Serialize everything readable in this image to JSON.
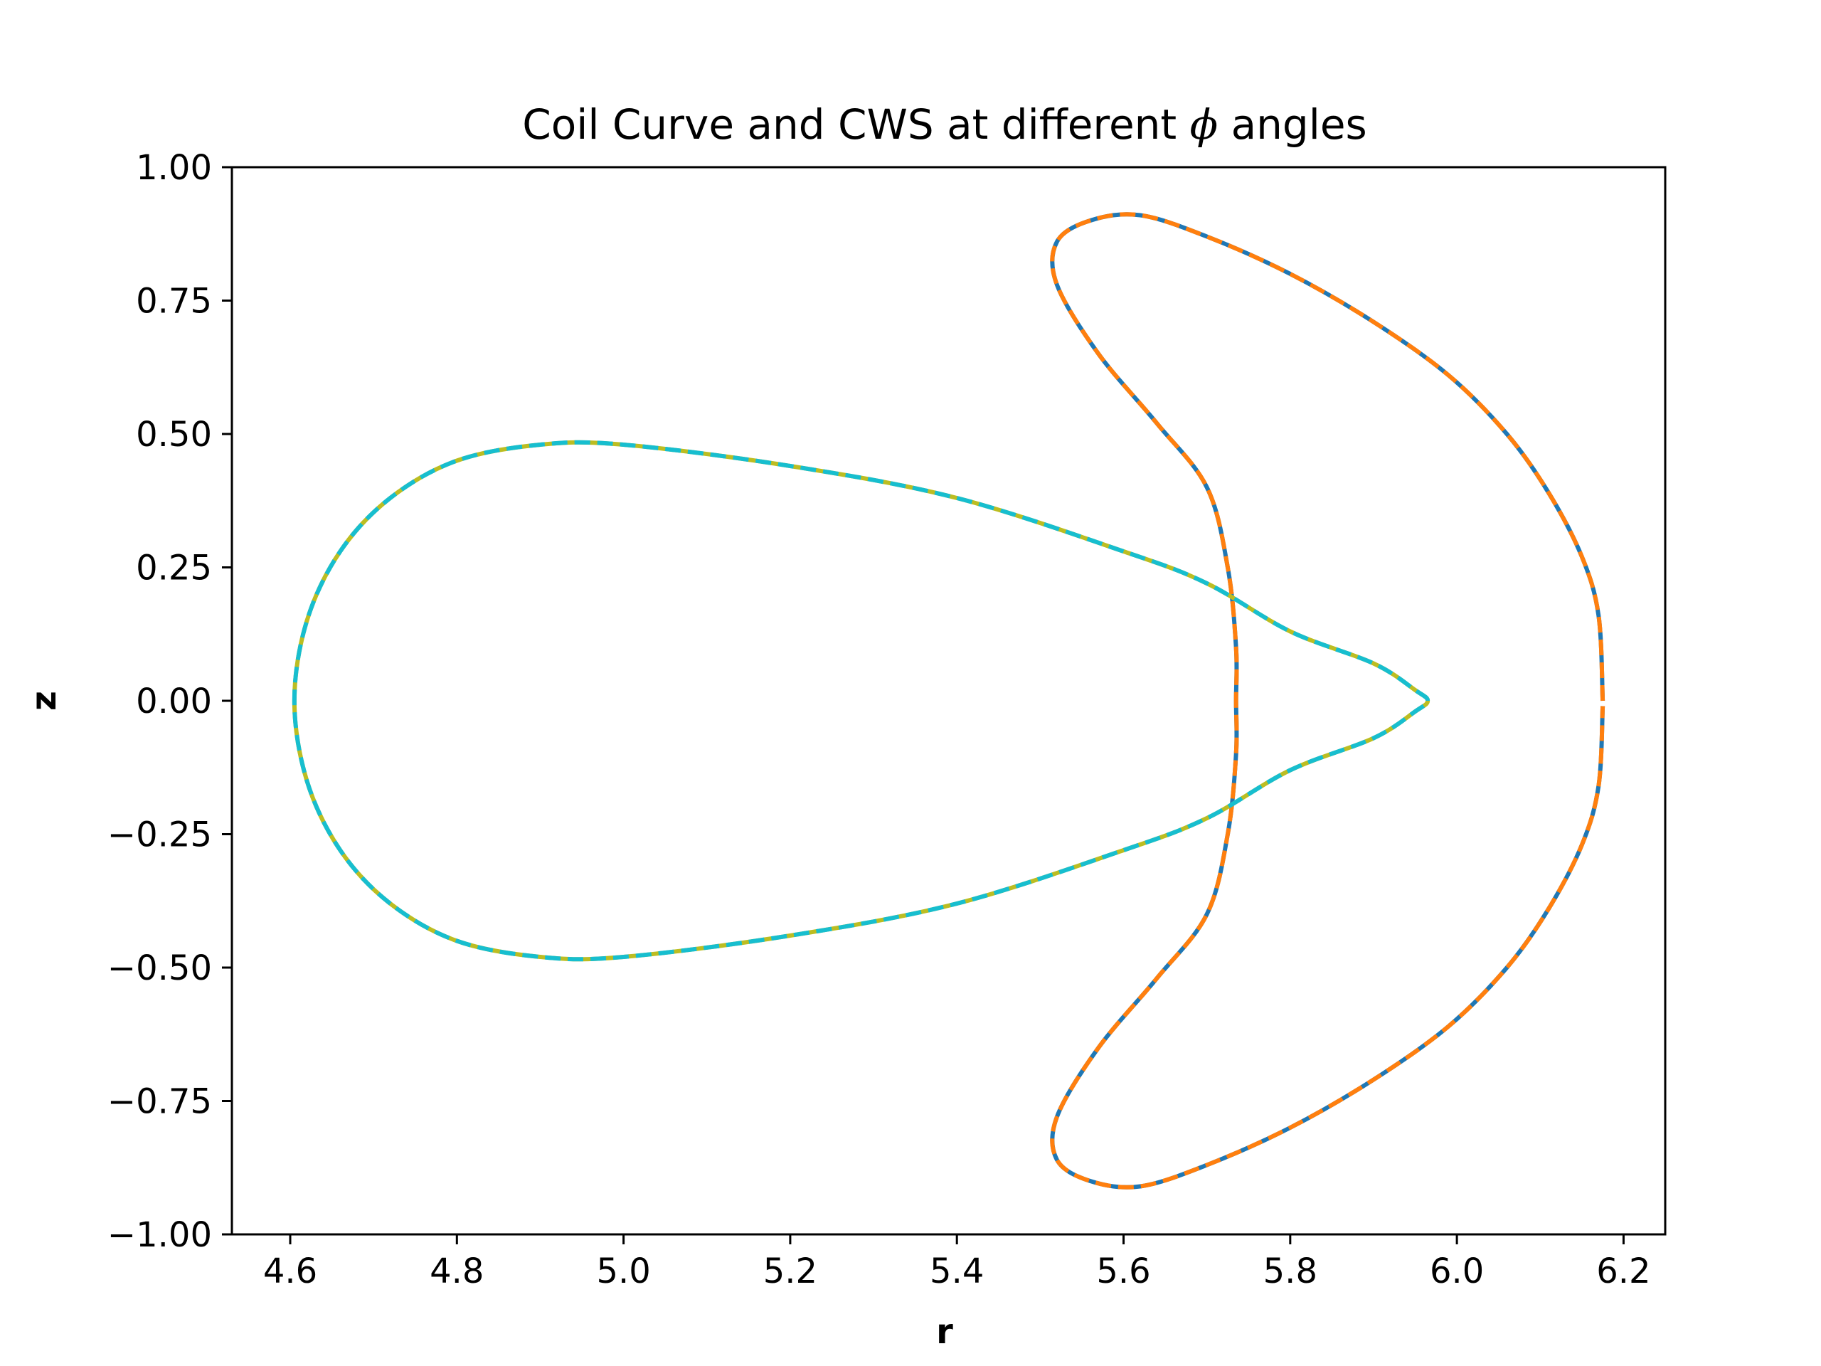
{
  "chart_data": {
    "type": "line",
    "title_before": "Coil Curve and CWS at different ",
    "title_symbol": "ϕ",
    "title_after": " angles",
    "xlabel": "r",
    "ylabel": "z",
    "xlim": [
      4.53,
      6.25
    ],
    "ylim": [
      -1.0,
      1.0
    ],
    "x_ticks": [
      4.6,
      4.8,
      5.0,
      5.2,
      5.4,
      5.6,
      5.8,
      6.0,
      6.2
    ],
    "x_tick_labels": [
      "4.6",
      "4.8",
      "5.0",
      "5.2",
      "5.4",
      "5.6",
      "5.8",
      "6.0",
      "6.2"
    ],
    "y_ticks": [
      1.0,
      0.75,
      0.5,
      0.25,
      0.0,
      -0.25,
      -0.5,
      -0.75,
      -1.0
    ],
    "y_tick_labels": [
      "1.00",
      "0.75",
      "0.50",
      "0.25",
      "0.00",
      "−0.25",
      "−0.50",
      "−0.75",
      "−1.00"
    ],
    "grid": false,
    "legend": "none",
    "series": [
      {
        "color": "#1f77b4",
        "style": "solid",
        "closed": false,
        "points": [
          [
            6.175,
            0.0
          ],
          [
            6.17,
            0.16
          ],
          [
            6.15,
            0.27
          ],
          [
            6.11,
            0.39
          ],
          [
            6.06,
            0.5
          ],
          [
            5.99,
            0.61
          ],
          [
            5.9,
            0.71
          ],
          [
            5.8,
            0.8
          ],
          [
            5.7,
            0.87
          ],
          [
            5.62,
            0.91
          ],
          [
            5.56,
            0.9
          ],
          [
            5.52,
            0.86
          ],
          [
            5.52,
            0.78
          ],
          [
            5.57,
            0.65
          ],
          [
            5.64,
            0.52
          ],
          [
            5.7,
            0.4
          ],
          [
            5.725,
            0.25
          ],
          [
            5.735,
            0.1
          ],
          [
            5.735,
            0.0
          ],
          [
            5.735,
            -0.1
          ],
          [
            5.725,
            -0.25
          ],
          [
            5.7,
            -0.4
          ],
          [
            5.64,
            -0.52
          ],
          [
            5.57,
            -0.65
          ],
          [
            5.52,
            -0.78
          ],
          [
            5.52,
            -0.86
          ],
          [
            5.56,
            -0.9
          ],
          [
            5.62,
            -0.91
          ],
          [
            5.7,
            -0.87
          ],
          [
            5.8,
            -0.8
          ],
          [
            5.9,
            -0.71
          ],
          [
            5.99,
            -0.61
          ],
          [
            6.06,
            -0.5
          ],
          [
            6.11,
            -0.39
          ],
          [
            6.15,
            -0.27
          ],
          [
            6.17,
            -0.16
          ],
          [
            6.175,
            -0.01
          ]
        ]
      },
      {
        "color": "#ff7f0e",
        "style": "dashed",
        "closed": false,
        "points": [
          [
            6.175,
            0.0
          ],
          [
            6.17,
            0.16
          ],
          [
            6.15,
            0.27
          ],
          [
            6.11,
            0.39
          ],
          [
            6.06,
            0.5
          ],
          [
            5.99,
            0.61
          ],
          [
            5.9,
            0.71
          ],
          [
            5.8,
            0.8
          ],
          [
            5.7,
            0.87
          ],
          [
            5.62,
            0.91
          ],
          [
            5.56,
            0.9
          ],
          [
            5.52,
            0.86
          ],
          [
            5.52,
            0.78
          ],
          [
            5.57,
            0.65
          ],
          [
            5.64,
            0.52
          ],
          [
            5.7,
            0.4
          ],
          [
            5.725,
            0.25
          ],
          [
            5.735,
            0.1
          ],
          [
            5.735,
            0.0
          ],
          [
            5.735,
            -0.1
          ],
          [
            5.725,
            -0.25
          ],
          [
            5.7,
            -0.4
          ],
          [
            5.64,
            -0.52
          ],
          [
            5.57,
            -0.65
          ],
          [
            5.52,
            -0.78
          ],
          [
            5.52,
            -0.86
          ],
          [
            5.56,
            -0.9
          ],
          [
            5.62,
            -0.91
          ],
          [
            5.7,
            -0.87
          ],
          [
            5.8,
            -0.8
          ],
          [
            5.9,
            -0.71
          ],
          [
            5.99,
            -0.61
          ],
          [
            6.06,
            -0.5
          ],
          [
            6.11,
            -0.39
          ],
          [
            6.15,
            -0.27
          ],
          [
            6.17,
            -0.16
          ],
          [
            6.175,
            -0.01
          ]
        ]
      },
      {
        "color": "#bcbd22",
        "style": "solid",
        "closed": true,
        "points": [
          [
            5.965,
            0.0
          ],
          [
            5.95,
            0.02
          ],
          [
            5.9,
            0.07
          ],
          [
            5.8,
            0.13
          ],
          [
            5.7,
            0.22
          ],
          [
            5.6,
            0.28
          ],
          [
            5.4,
            0.38
          ],
          [
            5.2,
            0.44
          ],
          [
            5.0,
            0.48
          ],
          [
            4.9,
            0.48
          ],
          [
            4.8,
            0.45
          ],
          [
            4.72,
            0.38
          ],
          [
            4.66,
            0.28
          ],
          [
            4.62,
            0.15
          ],
          [
            4.605,
            0.0
          ],
          [
            4.62,
            -0.15
          ],
          [
            4.66,
            -0.28
          ],
          [
            4.72,
            -0.38
          ],
          [
            4.8,
            -0.45
          ],
          [
            4.9,
            -0.48
          ],
          [
            5.0,
            -0.48
          ],
          [
            5.2,
            -0.44
          ],
          [
            5.4,
            -0.38
          ],
          [
            5.6,
            -0.28
          ],
          [
            5.7,
            -0.22
          ],
          [
            5.8,
            -0.13
          ],
          [
            5.9,
            -0.07
          ],
          [
            5.95,
            -0.02
          ]
        ]
      },
      {
        "color": "#17becf",
        "style": "dashed",
        "closed": true,
        "points": [
          [
            5.965,
            0.0
          ],
          [
            5.95,
            0.02
          ],
          [
            5.9,
            0.07
          ],
          [
            5.8,
            0.13
          ],
          [
            5.7,
            0.22
          ],
          [
            5.6,
            0.28
          ],
          [
            5.4,
            0.38
          ],
          [
            5.2,
            0.44
          ],
          [
            5.0,
            0.48
          ],
          [
            4.9,
            0.48
          ],
          [
            4.8,
            0.45
          ],
          [
            4.72,
            0.38
          ],
          [
            4.66,
            0.28
          ],
          [
            4.62,
            0.15
          ],
          [
            4.605,
            0.0
          ],
          [
            4.62,
            -0.15
          ],
          [
            4.66,
            -0.28
          ],
          [
            4.72,
            -0.38
          ],
          [
            4.8,
            -0.45
          ],
          [
            4.9,
            -0.48
          ],
          [
            5.0,
            -0.48
          ],
          [
            5.2,
            -0.44
          ],
          [
            5.4,
            -0.38
          ],
          [
            5.6,
            -0.28
          ],
          [
            5.7,
            -0.22
          ],
          [
            5.8,
            -0.13
          ],
          [
            5.9,
            -0.07
          ],
          [
            5.95,
            -0.02
          ]
        ]
      }
    ]
  }
}
